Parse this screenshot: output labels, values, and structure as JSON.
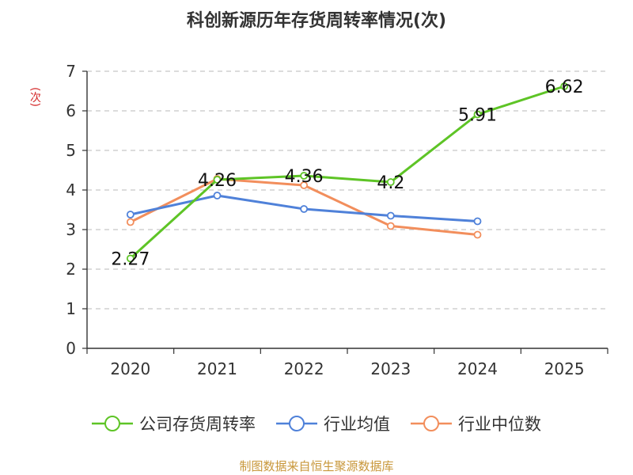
{
  "chart_data": {
    "type": "line",
    "title": "科创新源历年存货周转率情况(次)",
    "ylabel": "(次)",
    "categories": [
      "2020",
      "2021",
      "2022",
      "2023",
      "2024",
      "2025"
    ],
    "ylim": [
      0,
      7
    ],
    "yticks": [
      "0",
      "1",
      "2",
      "3",
      "4",
      "5",
      "6",
      "7"
    ],
    "grid": true,
    "legend_position": "bottom",
    "series": [
      {
        "name": "公司存货周转率",
        "color": "#5ec426",
        "values": [
          2.27,
          4.26,
          4.36,
          4.2,
          5.91,
          6.62
        ],
        "labels": [
          "2.27",
          "4.26",
          "4.36",
          "4.2",
          "5.91",
          "6.62"
        ]
      },
      {
        "name": "行业均值",
        "color": "#4f81d9",
        "values": [
          3.38,
          3.86,
          3.52,
          3.35,
          3.21,
          null
        ]
      },
      {
        "name": "行业中位数",
        "color": "#f28e5c",
        "values": [
          3.19,
          4.28,
          4.12,
          3.09,
          2.87,
          null
        ]
      }
    ]
  },
  "footer": "制图数据来自恒生聚源数据库"
}
